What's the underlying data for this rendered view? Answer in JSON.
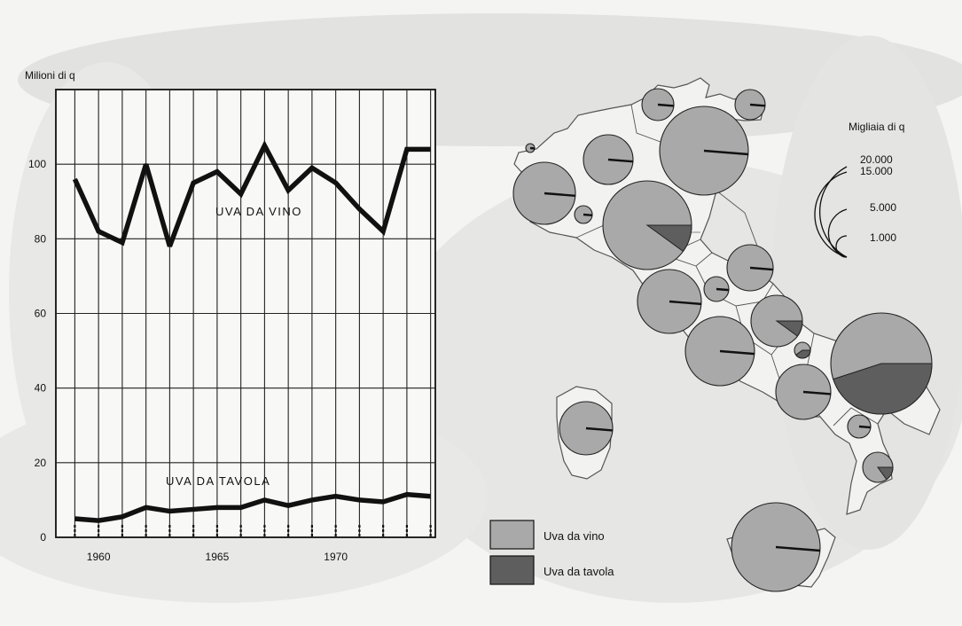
{
  "chart_data": [
    {
      "type": "line",
      "ylabel": "Milioni di q",
      "ylim": [
        0,
        120
      ],
      "y_ticks": [
        0,
        20,
        40,
        60,
        80,
        100
      ],
      "x_tick_labels": [
        "1960",
        "1965",
        "1970"
      ],
      "x": [
        1959,
        1960,
        1961,
        1962,
        1963,
        1964,
        1965,
        1966,
        1967,
        1968,
        1969,
        1970,
        1971,
        1972,
        1973,
        1974
      ],
      "grid": true,
      "series": [
        {
          "name": "UVA DA VINO",
          "values": [
            96,
            82,
            79,
            100,
            78,
            95,
            98,
            92,
            105,
            93,
            99,
            95,
            88,
            82,
            104,
            104
          ]
        },
        {
          "name": "UVA DA TAVOLA",
          "values": [
            5,
            4.5,
            5.5,
            8,
            7,
            7.5,
            8,
            8,
            10,
            8.5,
            10,
            11,
            10,
            9.5,
            11.5,
            11
          ]
        }
      ]
    },
    {
      "type": "pie",
      "title": "Migliaia di q",
      "legend": [
        "Uva da vino",
        "Uva da tavola"
      ],
      "scale_labels": [
        "20.000",
        "15.000",
        "5.000",
        "1.000"
      ],
      "colors": {
        "vino": "#a9a9a9",
        "tavola": "#5e5e5e"
      },
      "regions": [
        {
          "vino_share": 0.97,
          "tavola_share": 0.03
        },
        {
          "vino_share": 0.97,
          "tavola_share": 0.03
        },
        {
          "vino_share": 0.98,
          "tavola_share": 0.02
        },
        {
          "vino_share": 0.97,
          "tavola_share": 0.03
        },
        {
          "vino_share": 0.97,
          "tavola_share": 0.03
        },
        {
          "vino_share": 0.98,
          "tavola_share": 0.02
        },
        {
          "vino_share": 0.97,
          "tavola_share": 0.03
        },
        {
          "vino_share": 0.9,
          "tavola_share": 0.1
        },
        {
          "vino_share": 0.97,
          "tavola_share": 0.03
        },
        {
          "vino_share": 0.97,
          "tavola_share": 0.03
        },
        {
          "vino_share": 0.97,
          "tavola_share": 0.03
        },
        {
          "vino_share": 0.97,
          "tavola_share": 0.03
        },
        {
          "vino_share": 0.9,
          "tavola_share": 0.1
        },
        {
          "vino_share": 0.55,
          "tavola_share": 0.45
        },
        {
          "vino_share": 0.6,
          "tavola_share": 0.4
        },
        {
          "vino_share": 0.97,
          "tavola_share": 0.03
        },
        {
          "vino_share": 0.97,
          "tavola_share": 0.03
        },
        {
          "vino_share": 0.85,
          "tavola_share": 0.15
        },
        {
          "vino_share": 0.97,
          "tavola_share": 0.03
        },
        {
          "vino_share": 0.97,
          "tavola_share": 0.03
        },
        {
          "vino_share": 0.97,
          "tavola_share": 0.03
        },
        {
          "vino_share": 0.88,
          "tavola_share": 0.12
        }
      ]
    }
  ]
}
